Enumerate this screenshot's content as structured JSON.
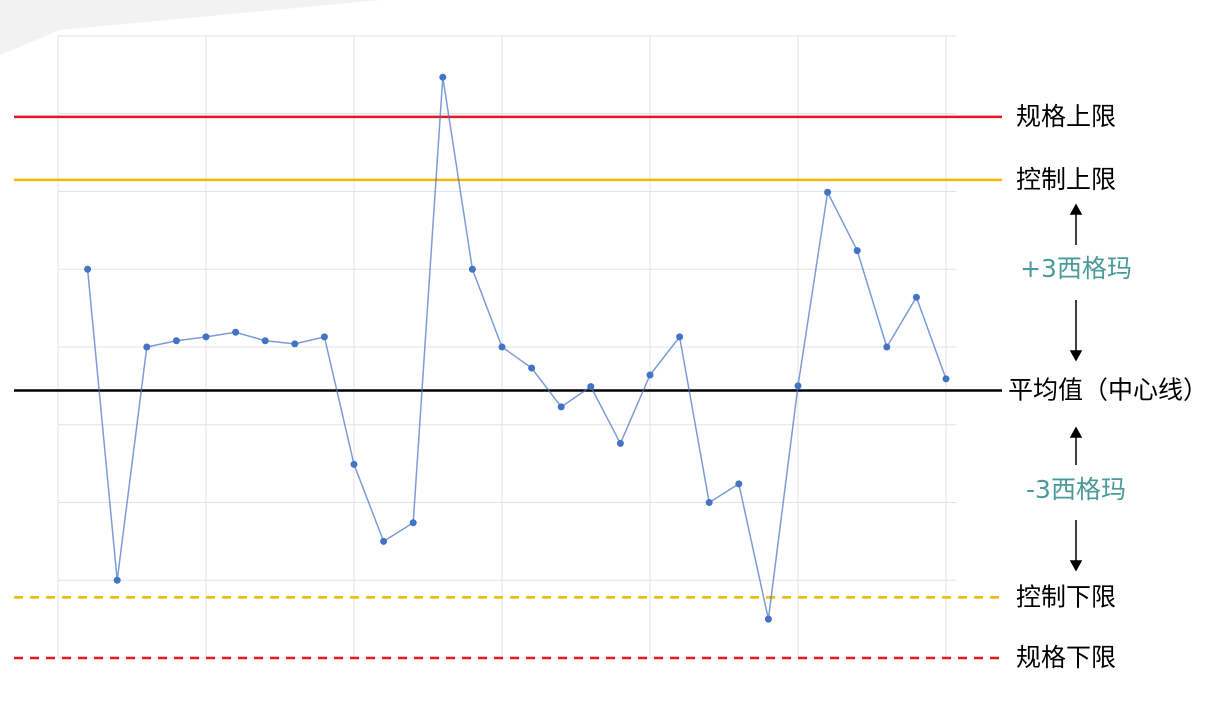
{
  "chart_data": {
    "type": "line",
    "x": [
      1,
      2,
      3,
      4,
      5,
      6,
      7,
      8,
      9,
      10,
      11,
      12,
      13,
      14,
      15,
      16,
      17,
      18,
      19,
      20,
      21,
      22,
      23,
      24,
      25,
      26,
      27,
      28,
      29,
      30
    ],
    "series": [
      {
        "color": "#4472c4",
        "values": [
          5.0,
          1.0,
          4.0,
          4.08,
          4.13,
          4.19,
          4.08,
          4.04,
          4.13,
          2.49,
          1.5,
          1.74,
          7.47,
          5.0,
          4.0,
          3.73,
          3.23,
          3.49,
          2.76,
          3.64,
          4.13,
          2.0,
          2.24,
          0.5,
          3.5,
          5.99,
          5.24,
          4.0,
          4.64,
          3.59
        ]
      }
    ],
    "xlim": [
      0,
      30
    ],
    "xticks": [
      0,
      5,
      10,
      15,
      20,
      25,
      30
    ],
    "ylim": [
      0,
      8
    ],
    "yticks": [
      0,
      1,
      2,
      3,
      4,
      5,
      6,
      7,
      8
    ],
    "grid": true,
    "reference_lines": [
      {
        "label": "规格上限",
        "value": 6.96,
        "color": "#e8171c",
        "dashed": false
      },
      {
        "label": "控制上限",
        "value": 6.15,
        "color": "#f2b807",
        "dashed": false
      },
      {
        "label": "平均值（中心线）",
        "value": 3.44,
        "color": "#000000",
        "dashed": false
      },
      {
        "label": "控制下限",
        "value": 0.78,
        "color": "#f2b807",
        "dashed": true
      },
      {
        "label": "规格下限",
        "value": 0.0,
        "color": "#e8171c",
        "dashed": true
      }
    ],
    "annotations": [
      {
        "text": "+3西格玛",
        "color": "#4a9a9a"
      },
      {
        "text": "-3西格玛",
        "color": "#4a9a9a"
      }
    ]
  }
}
